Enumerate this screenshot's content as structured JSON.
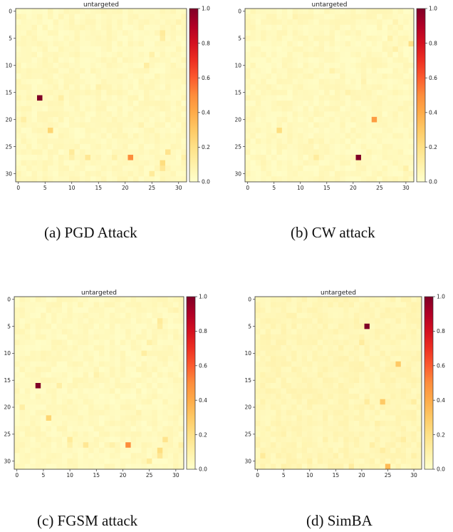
{
  "chart_data": [
    {
      "type": "heatmap",
      "title": "untargeted",
      "caption": "(a)  PGD Attack",
      "grid_size": 32,
      "background_value": 0.04,
      "xticks": [
        0,
        5,
        10,
        15,
        20,
        25,
        30
      ],
      "yticks": [
        0,
        5,
        10,
        15,
        20,
        25,
        30
      ],
      "colorbar": {
        "min": 0.0,
        "max": 1.0,
        "ticks": [
          "0.0",
          "0.2",
          "0.4",
          "0.6",
          "0.8",
          "1.0"
        ]
      },
      "cells": [
        {
          "row": 16,
          "col": 4,
          "value": 1.0
        },
        {
          "row": 27,
          "col": 21,
          "value": 0.5
        },
        {
          "row": 22,
          "col": 6,
          "value": 0.26
        },
        {
          "row": 28,
          "col": 27,
          "value": 0.22
        },
        {
          "row": 26,
          "col": 28,
          "value": 0.18
        },
        {
          "row": 29,
          "col": 27,
          "value": 0.16
        },
        {
          "row": 27,
          "col": 13,
          "value": 0.16
        },
        {
          "row": 26,
          "col": 10,
          "value": 0.14
        },
        {
          "row": 30,
          "col": 25,
          "value": 0.14
        },
        {
          "row": 10,
          "col": 24,
          "value": 0.12
        },
        {
          "row": 4,
          "col": 27,
          "value": 0.14
        },
        {
          "row": 5,
          "col": 27,
          "value": 0.12
        },
        {
          "row": 16,
          "col": 8,
          "value": 0.11
        },
        {
          "row": 20,
          "col": 1,
          "value": 0.11
        },
        {
          "row": 27,
          "col": 18,
          "value": 0.1
        },
        {
          "row": 8,
          "col": 25,
          "value": 0.1
        },
        {
          "row": 14,
          "col": 15,
          "value": 0.09
        },
        {
          "row": 27,
          "col": 10,
          "value": 0.1
        },
        {
          "row": 2,
          "col": 30,
          "value": 0.08
        },
        {
          "row": 27,
          "col": 31,
          "value": 0.1
        },
        {
          "row": 21,
          "col": 23,
          "value": 0.08
        }
      ]
    },
    {
      "type": "heatmap",
      "title": "untargeted",
      "caption": "(b)  CW attack",
      "grid_size": 32,
      "background_value": 0.04,
      "xticks": [
        0,
        5,
        10,
        15,
        20,
        25,
        30
      ],
      "yticks": [
        0,
        5,
        10,
        15,
        20,
        25,
        30
      ],
      "colorbar": {
        "min": 0.0,
        "max": 1.0,
        "ticks": [
          "0.0",
          "0.2",
          "0.4",
          "0.6",
          "0.8",
          "1.0"
        ]
      },
      "cells": [
        {
          "row": 27,
          "col": 21,
          "value": 1.0
        },
        {
          "row": 20,
          "col": 24,
          "value": 0.45
        },
        {
          "row": 22,
          "col": 6,
          "value": 0.22
        },
        {
          "row": 6,
          "col": 31,
          "value": 0.2
        },
        {
          "row": 27,
          "col": 13,
          "value": 0.13
        },
        {
          "row": 7,
          "col": 28,
          "value": 0.1
        },
        {
          "row": 29,
          "col": 30,
          "value": 0.1
        },
        {
          "row": 11,
          "col": 16,
          "value": 0.09
        },
        {
          "row": 15,
          "col": 19,
          "value": 0.09
        },
        {
          "row": 5,
          "col": 27,
          "value": 0.09
        },
        {
          "row": 1,
          "col": 9,
          "value": 0.08
        },
        {
          "row": 2,
          "col": 28,
          "value": 0.08
        },
        {
          "row": 13,
          "col": 22,
          "value": 0.08
        },
        {
          "row": 24,
          "col": 12,
          "value": 0.08
        },
        {
          "row": 28,
          "col": 3,
          "value": 0.07
        }
      ]
    },
    {
      "type": "heatmap",
      "title": "untargeted",
      "caption": "(c)  FGSM attack",
      "grid_size": 32,
      "background_value": 0.04,
      "xticks": [
        0,
        5,
        10,
        15,
        20,
        25,
        30
      ],
      "yticks": [
        0,
        5,
        10,
        15,
        20,
        25,
        30
      ],
      "colorbar": {
        "min": 0.0,
        "max": 1.0,
        "ticks": [
          "0.0",
          "0.2",
          "0.4",
          "0.6",
          "0.8",
          "1.0"
        ]
      },
      "cells": [
        {
          "row": 16,
          "col": 4,
          "value": 1.0
        },
        {
          "row": 27,
          "col": 21,
          "value": 0.5
        },
        {
          "row": 22,
          "col": 6,
          "value": 0.26
        },
        {
          "row": 28,
          "col": 27,
          "value": 0.22
        },
        {
          "row": 26,
          "col": 28,
          "value": 0.18
        },
        {
          "row": 29,
          "col": 27,
          "value": 0.16
        },
        {
          "row": 27,
          "col": 13,
          "value": 0.16
        },
        {
          "row": 26,
          "col": 10,
          "value": 0.14
        },
        {
          "row": 30,
          "col": 25,
          "value": 0.14
        },
        {
          "row": 10,
          "col": 24,
          "value": 0.12
        },
        {
          "row": 4,
          "col": 27,
          "value": 0.14
        },
        {
          "row": 5,
          "col": 27,
          "value": 0.12
        },
        {
          "row": 16,
          "col": 8,
          "value": 0.11
        },
        {
          "row": 20,
          "col": 1,
          "value": 0.11
        },
        {
          "row": 27,
          "col": 18,
          "value": 0.1
        },
        {
          "row": 8,
          "col": 25,
          "value": 0.1
        },
        {
          "row": 14,
          "col": 15,
          "value": 0.09
        },
        {
          "row": 27,
          "col": 10,
          "value": 0.1
        },
        {
          "row": 2,
          "col": 30,
          "value": 0.08
        },
        {
          "row": 27,
          "col": 31,
          "value": 0.1
        },
        {
          "row": 21,
          "col": 23,
          "value": 0.08
        }
      ]
    },
    {
      "type": "heatmap",
      "title": "untargeted",
      "caption": "(d)  SimBA",
      "grid_size": 32,
      "background_value": 0.06,
      "xticks": [
        0,
        5,
        10,
        15,
        20,
        25,
        30
      ],
      "yticks": [
        0,
        5,
        10,
        15,
        20,
        25,
        30
      ],
      "colorbar": {
        "min": 0.0,
        "max": 1.0,
        "ticks": [
          "0.0",
          "0.2",
          "0.4",
          "0.6",
          "0.8",
          "1.0"
        ]
      },
      "cells": [
        {
          "row": 5,
          "col": 21,
          "value": 1.0
        },
        {
          "row": 31,
          "col": 25,
          "value": 0.35
        },
        {
          "row": 12,
          "col": 27,
          "value": 0.3
        },
        {
          "row": 19,
          "col": 24,
          "value": 0.3
        },
        {
          "row": 29,
          "col": 1,
          "value": 0.14
        },
        {
          "row": 31,
          "col": 18,
          "value": 0.13
        },
        {
          "row": 19,
          "col": 21,
          "value": 0.13
        },
        {
          "row": 8,
          "col": 20,
          "value": 0.13
        },
        {
          "row": 19,
          "col": 30,
          "value": 0.12
        },
        {
          "row": 26,
          "col": 28,
          "value": 0.12
        },
        {
          "row": 28,
          "col": 24,
          "value": 0.12
        },
        {
          "row": 29,
          "col": 30,
          "value": 0.1
        },
        {
          "row": 23,
          "col": 23,
          "value": 0.1
        },
        {
          "row": 27,
          "col": 22,
          "value": 0.11
        },
        {
          "row": 30,
          "col": 10,
          "value": 0.1
        },
        {
          "row": 31,
          "col": 5,
          "value": 0.1
        },
        {
          "row": 26,
          "col": 13,
          "value": 0.09
        },
        {
          "row": 25,
          "col": 5,
          "value": 0.09
        },
        {
          "row": 17,
          "col": 7,
          "value": 0.08
        },
        {
          "row": 29,
          "col": 15,
          "value": 0.09
        }
      ]
    }
  ]
}
